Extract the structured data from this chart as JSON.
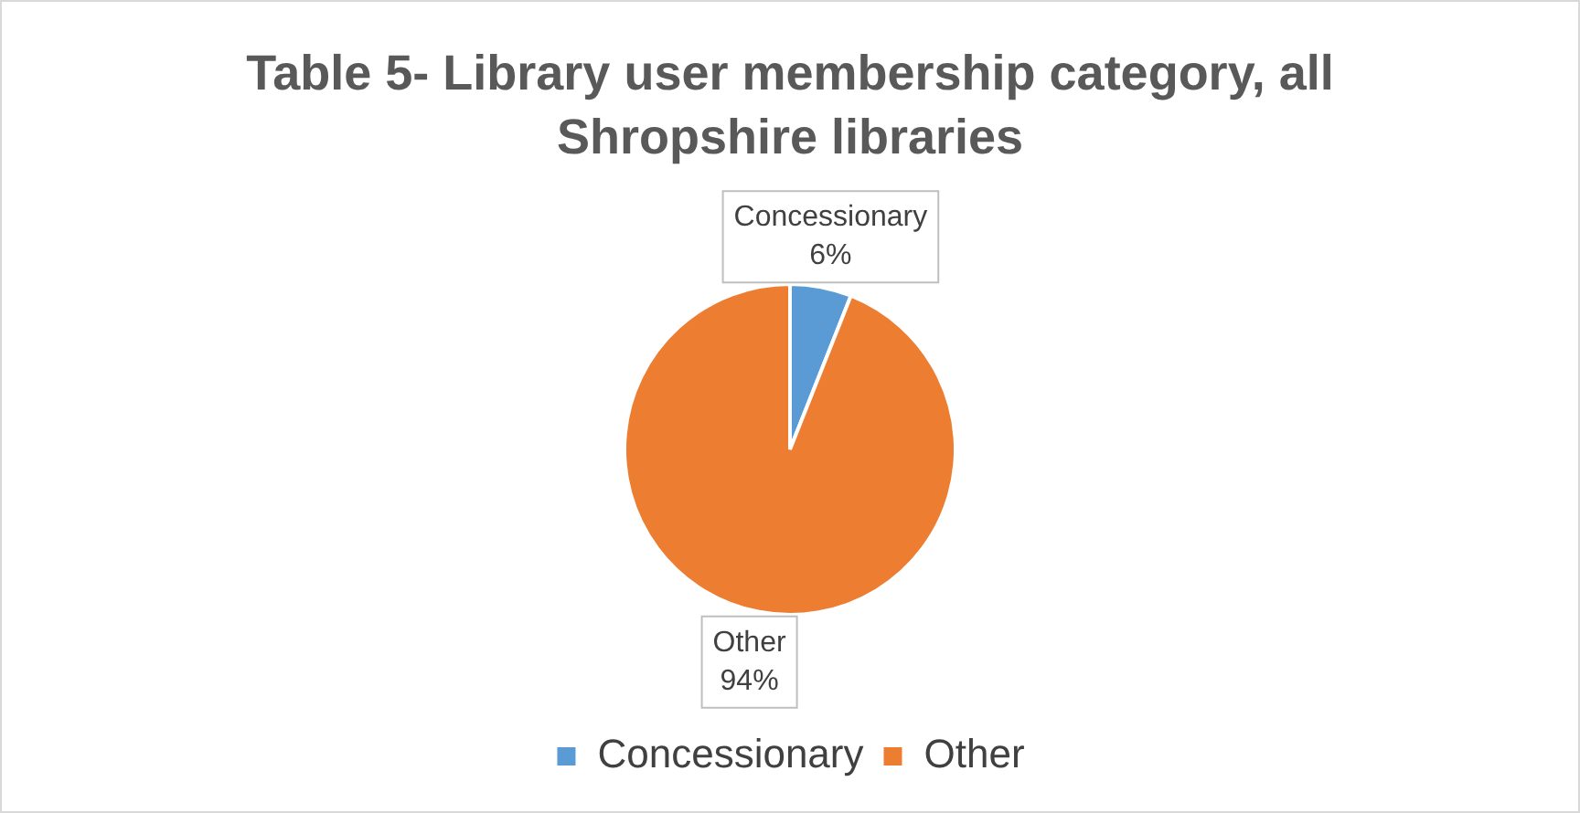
{
  "chart_data": {
    "type": "pie",
    "title": "Table 5- Library user membership category, all Shropshire libraries",
    "categories": [
      "Concessionary",
      "Other"
    ],
    "values": [
      6,
      94
    ],
    "value_labels": [
      "6%",
      "94%"
    ],
    "colors": [
      "#5b9bd5",
      "#ed7d31"
    ],
    "legend": "bottom"
  }
}
